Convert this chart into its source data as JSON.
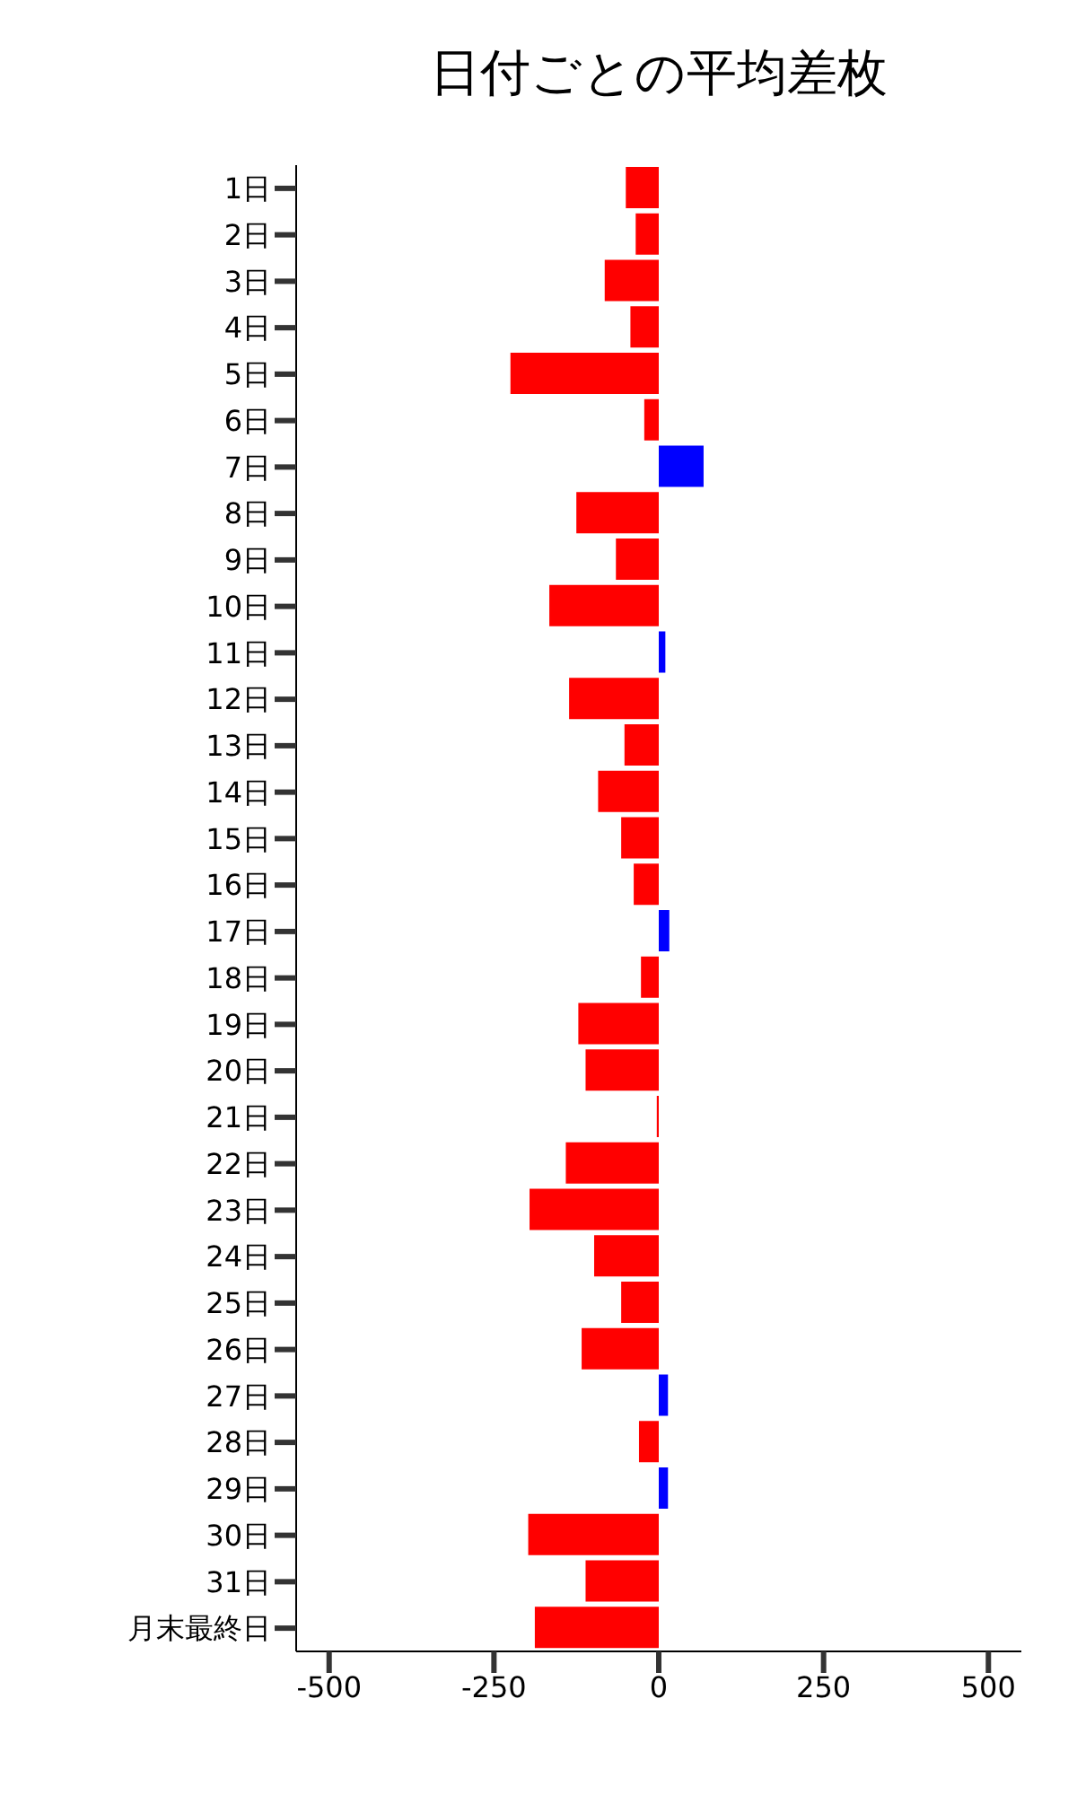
{
  "chart_data": {
    "type": "bar",
    "orientation": "horizontal",
    "title": "日付ごとの平均差枚",
    "categories": [
      "1日",
      "2日",
      "3日",
      "4日",
      "5日",
      "6日",
      "7日",
      "8日",
      "9日",
      "10日",
      "11日",
      "12日",
      "13日",
      "14日",
      "15日",
      "16日",
      "17日",
      "18日",
      "19日",
      "20日",
      "21日",
      "22日",
      "23日",
      "24日",
      "25日",
      "26日",
      "27日",
      "28日",
      "29日",
      "30日",
      "31日",
      "月末最終日"
    ],
    "values": [
      -50,
      -35,
      -82,
      -43,
      -225,
      -22,
      68,
      -125,
      -65,
      -166,
      10,
      -136,
      -52,
      -92,
      -57,
      -38,
      16,
      -27,
      -122,
      -111,
      -3,
      -141,
      -196,
      -98,
      -57,
      -117,
      14,
      -30,
      14,
      -198,
      -111,
      -188
    ],
    "colors": [
      "#ff0000",
      "#ff0000",
      "#ff0000",
      "#ff0000",
      "#ff0000",
      "#ff0000",
      "#0000ff",
      "#ff0000",
      "#ff0000",
      "#ff0000",
      "#0000ff",
      "#ff0000",
      "#ff0000",
      "#ff0000",
      "#ff0000",
      "#ff0000",
      "#0000ff",
      "#ff0000",
      "#ff0000",
      "#ff0000",
      "#ff0000",
      "#ff0000",
      "#ff0000",
      "#ff0000",
      "#ff0000",
      "#ff0000",
      "#0000ff",
      "#ff0000",
      "#0000ff",
      "#ff0000",
      "#ff0000",
      "#ff0000"
    ],
    "xlim": [
      -550,
      550
    ],
    "xticks": [
      -500,
      -250,
      0,
      250,
      500
    ],
    "grid": false
  }
}
